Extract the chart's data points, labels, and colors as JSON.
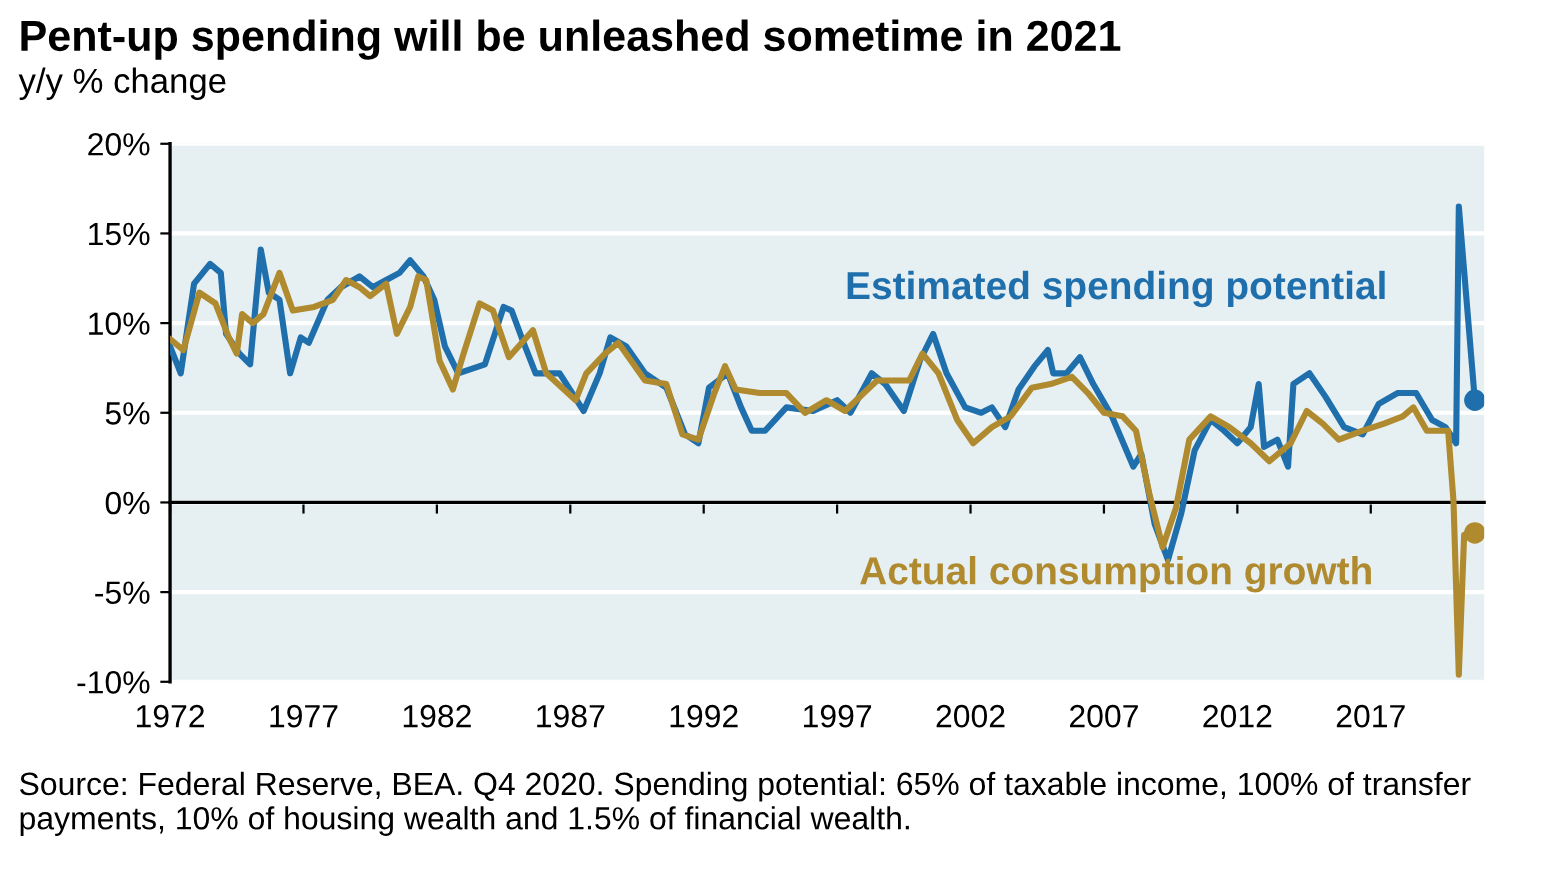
{
  "chart_data": {
    "type": "line",
    "title": "Pent-up spending will be unleashed sometime in 2021",
    "subtitle": "y/y % change",
    "annotations": [
      "Source: Federal Reserve, BEA. Q4 2020. Spending potential: 65% of taxable income, 100% of transfer payments, 10% of housing wealth and 1.5% of financial wealth."
    ],
    "xlim": [
      1972,
      2021.25
    ],
    "xticks": [
      1972,
      1977,
      1982,
      1987,
      1992,
      1997,
      2002,
      2007,
      2012,
      2017
    ],
    "ylim": [
      -10,
      20
    ],
    "yticks": [
      {
        "value": -10,
        "label": "-10%"
      },
      {
        "value": -5,
        "label": "-5%"
      },
      {
        "value": 0,
        "label": "0%"
      },
      {
        "value": 5,
        "label": "5%"
      },
      {
        "value": 10,
        "label": "10%"
      },
      {
        "value": 15,
        "label": "15%"
      },
      {
        "value": 20,
        "label": "20%"
      }
    ],
    "grid": "y",
    "marker": "none",
    "line_style": "solid",
    "series": [
      {
        "name": "Estimated spending potential",
        "color": "#1f6fad",
        "x": [
          1972.0,
          1972.4,
          1972.9,
          1973.5,
          1973.9,
          1974.1,
          1974.6,
          1975.0,
          1975.4,
          1975.7,
          1976.1,
          1976.5,
          1976.9,
          1977.2,
          1977.9,
          1978.4,
          1979.1,
          1979.6,
          1980.1,
          1980.6,
          1981.0,
          1981.5,
          1981.9,
          1982.3,
          1982.8,
          1983.8,
          1984.5,
          1984.8,
          1985.2,
          1985.7,
          1986.6,
          1987.5,
          1988.1,
          1988.5,
          1989.1,
          1989.8,
          1990.6,
          1991.3,
          1991.8,
          1992.2,
          1992.9,
          1993.4,
          1993.8,
          1994.3,
          1995.1,
          1996.1,
          1997.0,
          1997.5,
          1998.3,
          1998.8,
          1999.5,
          2000.1,
          2000.6,
          2001.1,
          2001.8,
          2002.4,
          2002.8,
          2003.3,
          2003.8,
          2004.4,
          2004.9,
          2005.1,
          2005.6,
          2006.1,
          2006.6,
          2007.3,
          2007.9,
          2008.1,
          2008.4,
          2008.9,
          2009.4,
          2009.9,
          2010.4,
          2011.0,
          2011.5,
          2012.0,
          2012.5,
          2012.8,
          2013.0,
          2013.5,
          2013.9,
          2014.1,
          2014.7,
          2015.3,
          2016.0,
          2016.7,
          2017.3,
          2018.0,
          2018.7,
          2019.3,
          2019.8,
          2020.2,
          2020.3,
          2020.9
        ],
        "values": [
          8.7,
          7.2,
          12.2,
          13.3,
          12.8,
          9.4,
          8.3,
          7.7,
          14.1,
          11.7,
          11.3,
          7.2,
          9.2,
          8.9,
          11.3,
          12.0,
          12.6,
          12.0,
          12.4,
          12.8,
          13.5,
          12.6,
          11.3,
          8.7,
          7.2,
          7.7,
          10.9,
          10.7,
          9.1,
          7.2,
          7.2,
          5.1,
          7.2,
          9.2,
          8.7,
          7.2,
          6.4,
          3.8,
          3.3,
          6.4,
          7.2,
          5.3,
          4.0,
          4.0,
          5.3,
          5.1,
          5.7,
          5.0,
          7.2,
          6.6,
          5.1,
          7.9,
          9.4,
          7.2,
          5.3,
          5.0,
          5.3,
          4.2,
          6.3,
          7.6,
          8.5,
          7.2,
          7.2,
          8.1,
          6.6,
          4.8,
          2.7,
          2.0,
          2.7,
          -1.2,
          -3.2,
          -0.6,
          2.9,
          4.6,
          4.0,
          3.3,
          4.2,
          6.6,
          3.1,
          3.5,
          2.0,
          6.6,
          7.2,
          5.9,
          4.2,
          3.8,
          5.5,
          6.1,
          6.1,
          4.6,
          4.2,
          3.3,
          16.5,
          5.7
        ]
      },
      {
        "name": "Actual consumption growth",
        "color": "#b08a2e",
        "x": [
          1972.0,
          1972.5,
          1973.1,
          1973.7,
          1974.2,
          1974.5,
          1974.7,
          1975.1,
          1975.5,
          1976.1,
          1976.6,
          1977.4,
          1978.1,
          1978.6,
          1979.1,
          1979.5,
          1980.1,
          1980.5,
          1981.0,
          1981.3,
          1981.6,
          1982.1,
          1982.6,
          1983.0,
          1983.6,
          1984.1,
          1984.7,
          1985.6,
          1986.1,
          1987.2,
          1987.6,
          1988.3,
          1988.8,
          1989.8,
          1990.6,
          1991.2,
          1991.8,
          1992.4,
          1992.8,
          1993.2,
          1994.1,
          1995.1,
          1995.8,
          1996.6,
          1997.3,
          1998.0,
          1998.5,
          1999.7,
          2000.2,
          2000.8,
          2001.5,
          2002.1,
          2002.8,
          2003.5,
          2004.3,
          2005.0,
          2005.8,
          2006.4,
          2007.0,
          2007.7,
          2008.2,
          2008.7,
          2009.2,
          2009.7,
          2010.2,
          2011.0,
          2011.7,
          2012.5,
          2013.2,
          2014.0,
          2014.6,
          2015.2,
          2015.8,
          2016.7,
          2017.5,
          2018.2,
          2018.6,
          2019.1,
          2019.9,
          2020.1,
          2020.3,
          2020.5,
          2020.9
        ],
        "values": [
          9.1,
          8.5,
          11.7,
          11.1,
          9.2,
          8.3,
          10.5,
          10.0,
          10.5,
          12.8,
          10.7,
          10.9,
          11.3,
          12.4,
          12.0,
          11.5,
          12.2,
          9.4,
          10.9,
          12.6,
          12.4,
          7.9,
          6.3,
          8.3,
          11.1,
          10.7,
          8.1,
          9.6,
          7.2,
          5.7,
          7.2,
          8.3,
          8.9,
          6.8,
          6.6,
          3.8,
          3.5,
          6.1,
          7.6,
          6.3,
          6.1,
          6.1,
          5.0,
          5.7,
          5.1,
          6.1,
          6.8,
          6.8,
          8.3,
          7.2,
          4.6,
          3.3,
          4.2,
          4.8,
          6.4,
          6.6,
          7.0,
          6.1,
          5.0,
          4.8,
          4.0,
          0.5,
          -2.5,
          -0.3,
          3.5,
          4.8,
          4.2,
          3.3,
          2.3,
          3.3,
          5.1,
          4.4,
          3.5,
          4.0,
          4.4,
          4.8,
          5.3,
          4.0,
          4.0,
          0.1,
          -9.6,
          -1.8,
          -1.7
        ]
      },
      {
        "type": "scatter",
        "marker": "circle",
        "color": "#1f6fad",
        "x": [
          2020.9
        ],
        "values": [
          5.7
        ]
      },
      {
        "type": "scatter",
        "marker": "circle",
        "color": "#b08a2e",
        "x": [
          2020.9
        ],
        "values": [
          -1.7
        ]
      }
    ]
  }
}
